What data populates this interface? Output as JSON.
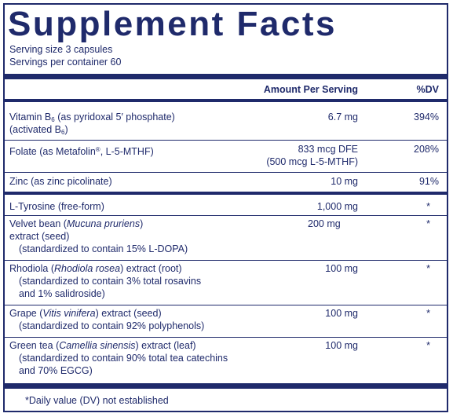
{
  "title": "Supplement Facts",
  "serving_size": "Serving size  3 capsules",
  "servings_per_container": "Servings per container  60",
  "headers": {
    "amount": "Amount Per Serving",
    "dv": "%DV"
  },
  "rows": [
    {
      "name_a": "Vitamin B",
      "name_sub": "6",
      "name_b": " (as pyridoxal 5′ phosphate)",
      "line2_a": "(activated B",
      "line2_sub": "6",
      "line2_b": ")",
      "amount": "6.7 mg",
      "dv": "394%"
    },
    {
      "name_a": "Folate (as Metafolin",
      "name_sup": "®",
      "name_b": ", L-5-MTHF)",
      "amount": "833 mcg DFE",
      "amount2": "(500 mcg L-5-MTHF)",
      "dv": "208%"
    },
    {
      "name": "Zinc (as zinc picolinate)",
      "amount": "10 mg",
      "dv": "91%"
    },
    {
      "name": "L-Tyrosine (free-form)",
      "amount": "1,000 mg",
      "dv": "*"
    },
    {
      "name_a": "Velvet bean (",
      "name_i": "Mucuna pruriens",
      "name_b": ")",
      "line2": "extract (seed)",
      "line3": "(standardized to contain 15% L-DOPA)",
      "amount": "200 mg",
      "dv": "*"
    },
    {
      "name_a": "Rhodiola (",
      "name_i": "Rhodiola rosea",
      "name_b": ") extract (root)",
      "line2": "(standardized to contain 3% total rosavins",
      "line3": "and 1% salidroside)",
      "amount": "100 mg",
      "dv": "*"
    },
    {
      "name_a": "Grape (",
      "name_i": "Vitis vinifera",
      "name_b": ") extract (seed)",
      "line2": "(standardized to contain 92% polyphenols)",
      "amount": "100 mg",
      "dv": "*"
    },
    {
      "name_a": "Green tea (",
      "name_i": "Camellia sinensis",
      "name_b": ") extract (leaf)",
      "line2": "(standardized to contain 90% total tea catechins",
      "line3": "and 70% EGCG)",
      "amount": "100 mg",
      "dv": "*"
    }
  ],
  "footnote": "*Daily value (DV) not established",
  "colors": {
    "ink": "#1f2a6b",
    "background": "#ffffff"
  }
}
